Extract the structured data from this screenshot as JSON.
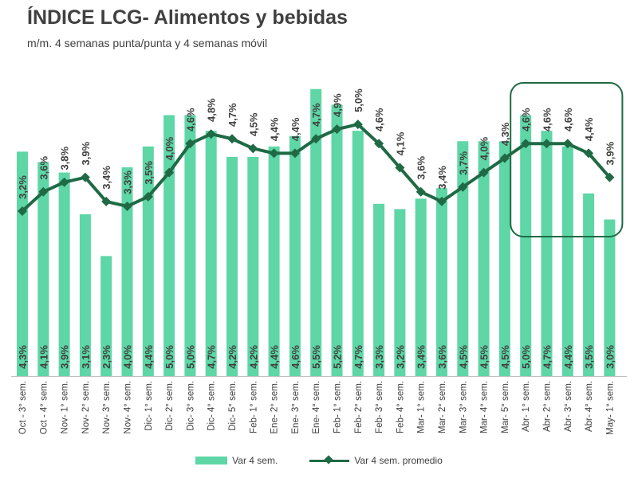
{
  "title": "ÍNDICE LCG- Alimentos y bebidas",
  "subtitle": "m/m. 4 semanas punta/punta y 4 semanas móvil",
  "colors": {
    "bar": "#5ed6a6",
    "line": "#1f6a45",
    "highlight": "#1f6a45",
    "text": "#404040"
  },
  "chart_data": {
    "type": "bar",
    "categories": [
      "Oct - 3° sem.",
      "Oct - 4° sem.",
      "Nov- 1° sem.",
      "Nov- 2° sem.",
      "Nov- 3° sem.",
      "Nov- 4° sem.",
      "Dic- 1° sem.",
      "Dic- 2° sem.",
      "Dic- 3° sem.",
      "Dic- 4° sem.",
      "Dic- 5° sem.",
      "Feb- 1° sem.",
      "Ene- 2° sem.",
      "Ene- 3° sem.",
      "Ene- 4° sem.",
      "Feb- 1° sem.",
      "Feb- 2° sem.",
      "Feb- 3° sem.",
      "Feb- 4° sem.",
      "Mar- 1° sem.",
      "Mar- 2° sem.",
      "Mar- 3° sem.",
      "Mar- 4° sem.",
      "Mar- 5° sem.",
      "Abr- 1° sem.",
      "Abr- 2° sem.",
      "Abr- 3° sem.",
      "Abr- 4° sem.",
      "May- 1° sem."
    ],
    "series": [
      {
        "name": "Var 4 sem.",
        "type": "bar",
        "values": [
          4.3,
          4.1,
          3.9,
          3.1,
          2.3,
          4.0,
          4.4,
          5.0,
          5.0,
          4.7,
          4.2,
          4.2,
          4.4,
          4.6,
          5.5,
          5.2,
          4.7,
          3.3,
          3.2,
          3.4,
          3.6,
          4.5,
          4.5,
          4.5,
          5.0,
          4.7,
          4.4,
          3.5,
          3.0
        ],
        "labels": [
          "4,3%",
          "4,1%",
          "3,9%",
          "3,1%",
          "2,3%",
          "4,0%",
          "4,4%",
          "5,0%",
          "5,0%",
          "4,7%",
          "4,2%",
          "4,2%",
          "4,4%",
          "4,6%",
          "5,5%",
          "5,2%",
          "4,7%",
          "3,3%",
          "3,2%",
          "3,4%",
          "3,6%",
          "4,5%",
          "4,5%",
          "4,5%",
          "5,0%",
          "4,7%",
          "4,4%",
          "3,5%",
          "3,0%"
        ]
      },
      {
        "name": "Var 4 sem. promedio",
        "type": "line",
        "values": [
          3.2,
          3.6,
          3.8,
          3.9,
          3.4,
          3.3,
          3.5,
          4.0,
          4.6,
          4.8,
          4.7,
          4.5,
          4.4,
          4.4,
          4.7,
          4.9,
          5.0,
          4.6,
          4.1,
          3.6,
          3.4,
          3.7,
          4.0,
          4.3,
          4.6,
          4.6,
          4.6,
          4.4,
          3.9
        ],
        "labels": [
          "3,2%",
          "3,6%",
          "3,8%",
          "3,9%",
          "3,4%",
          "3,3%",
          "3,5%",
          "4,0%",
          "4,6%",
          "4,8%",
          "4,7%",
          "4,5%",
          "4,4%",
          "4,4%",
          "4,7%",
          "4,9%",
          "5,0%",
          "4,6%",
          "4,1%",
          "3,6%",
          "3,4%",
          "3,7%",
          "4,0%",
          "4,3%",
          "4,6%",
          "4,6%",
          "4,6%",
          "4,4%",
          "3,9%"
        ]
      }
    ],
    "highlight_range": [
      24,
      28
    ],
    "grid": false,
    "legend_position": "bottom"
  }
}
